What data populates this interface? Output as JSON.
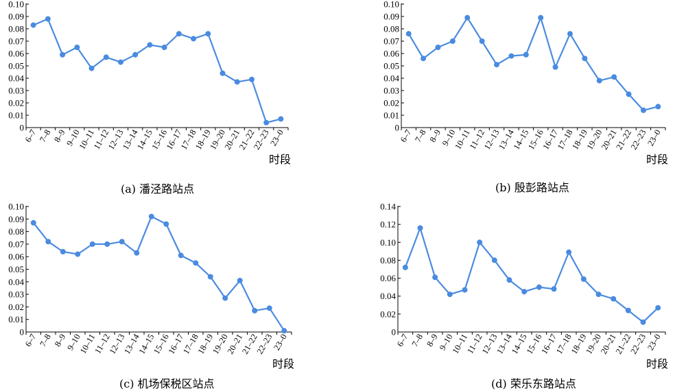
{
  "chart_data": [
    {
      "type": "line",
      "caption": "(a)  潘泾路站点",
      "xlabel": "时段",
      "categories": [
        "6–7",
        "7–8",
        "8–9",
        "9–10",
        "10–11",
        "11–12",
        "12–13",
        "13–14",
        "14–15",
        "15–16",
        "16–17",
        "17–18",
        "18–19",
        "19–20",
        "20–21",
        "21–22",
        "22–23",
        "23–0"
      ],
      "ylim": [
        0,
        0.1
      ],
      "yticks": [
        "0",
        "0.01",
        "0.02",
        "0.03",
        "0.04",
        "0.05",
        "0.06",
        "0.07",
        "0.08",
        "0.09",
        "0.10"
      ],
      "values": [
        0.083,
        0.088,
        0.059,
        0.065,
        0.048,
        0.057,
        0.053,
        0.059,
        0.067,
        0.065,
        0.076,
        0.072,
        0.076,
        0.044,
        0.037,
        0.039,
        0.004,
        0.007
      ],
      "color": "#4a8be0"
    },
    {
      "type": "line",
      "caption": "(b) 殷彭路站点",
      "xlabel": "时段",
      "categories": [
        "6–7",
        "7–8",
        "8–9",
        "9–10",
        "10–11",
        "11–12",
        "12–13",
        "13–14",
        "14–15",
        "15–16",
        "16–17",
        "17–18",
        "18–19",
        "19–20",
        "20–21",
        "21–22",
        "22–23",
        "23–0"
      ],
      "ylim": [
        0,
        0.1
      ],
      "yticks": [
        "0",
        "0.01",
        "0.02",
        "0.03",
        "0.04",
        "0.05",
        "0.06",
        "0.07",
        "0.08",
        "0.09",
        "0.10"
      ],
      "values": [
        0.076,
        0.056,
        0.065,
        0.07,
        0.089,
        0.07,
        0.051,
        0.058,
        0.059,
        0.089,
        0.049,
        0.076,
        0.056,
        0.038,
        0.041,
        0.027,
        0.014,
        0.017
      ],
      "color": "#4a8be0"
    },
    {
      "type": "line",
      "caption": "(c) 机场保税区站点",
      "xlabel": "时段",
      "categories": [
        "6–7",
        "7–8",
        "8–9",
        "9–10",
        "10–11",
        "11–12",
        "12–13",
        "13–14",
        "14–15",
        "15–16",
        "16–17",
        "17–18",
        "18–19",
        "19–20",
        "20–21",
        "21–22",
        "22–23",
        "23–0"
      ],
      "ylim": [
        0,
        0.1
      ],
      "yticks": [
        "0",
        "0.01",
        "0.02",
        "0.03",
        "0.04",
        "0.05",
        "0.06",
        "0.07",
        "0.08",
        "0.09",
        "0.10"
      ],
      "values": [
        0.087,
        0.072,
        0.064,
        0.062,
        0.07,
        0.07,
        0.072,
        0.063,
        0.092,
        0.086,
        0.061,
        0.055,
        0.044,
        0.027,
        0.041,
        0.017,
        0.019,
        0.001
      ],
      "color": "#4a8be0"
    },
    {
      "type": "line",
      "caption": "(d) 荣乐东路站点",
      "xlabel": "时段",
      "categories": [
        "6–7",
        "7–8",
        "8–9",
        "9–10",
        "10–11",
        "11–12",
        "12–13",
        "13–14",
        "14–15",
        "15–16",
        "16–17",
        "17–18",
        "18–19",
        "19–20",
        "20–21",
        "21–22",
        "22–23",
        "23–0"
      ],
      "ylim": [
        0,
        0.14
      ],
      "yticks": [
        "0",
        "0.02",
        "0.04",
        "0.06",
        "0.08",
        "0.10",
        "0.12",
        "0.14"
      ],
      "values": [
        0.072,
        0.116,
        0.061,
        0.042,
        0.047,
        0.1,
        0.08,
        0.058,
        0.045,
        0.05,
        0.048,
        0.089,
        0.059,
        0.042,
        0.037,
        0.024,
        0.011,
        0.027
      ],
      "color": "#4a8be0"
    }
  ]
}
